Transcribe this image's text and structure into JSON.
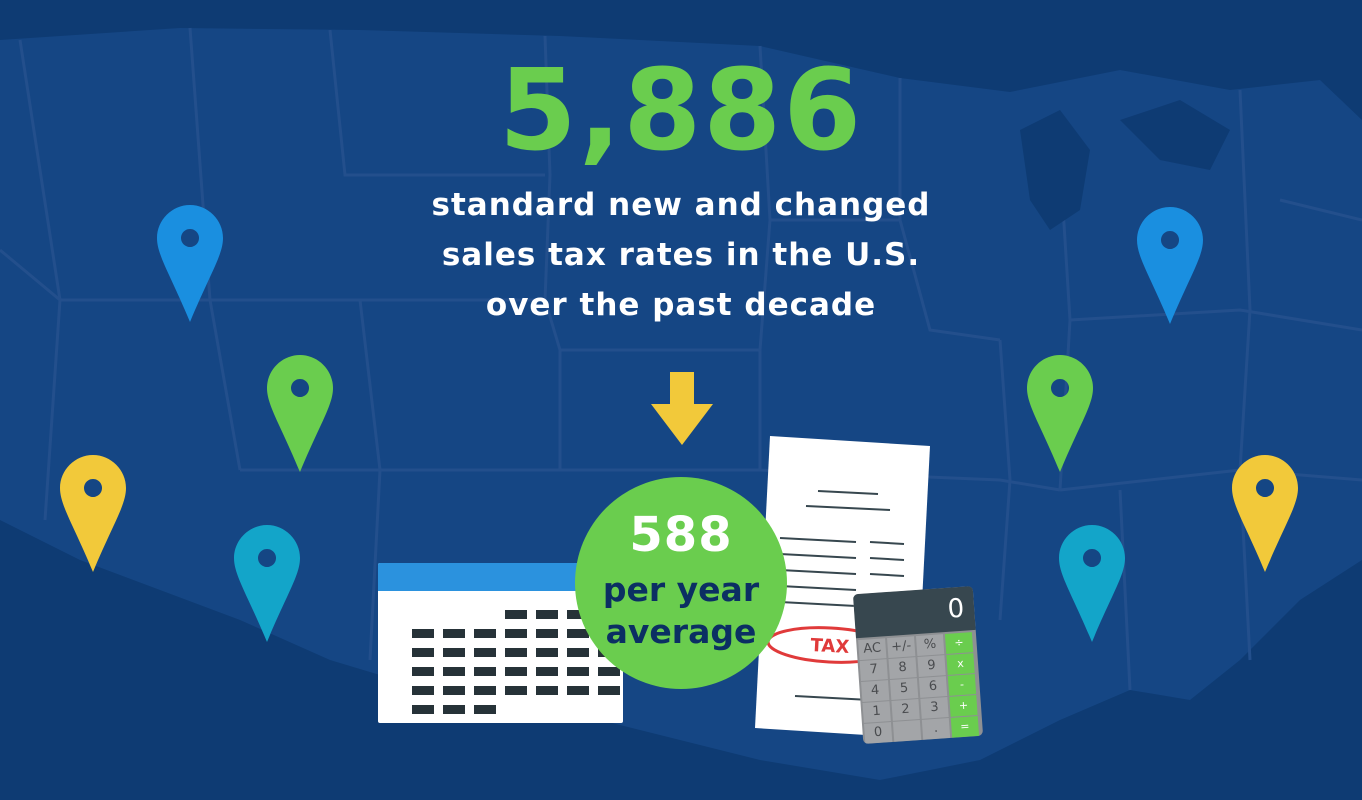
{
  "headline": {
    "number": "5,886",
    "lines": [
      "standard new and changed",
      "sales tax rates in the U.S.",
      "over the past decade"
    ]
  },
  "circle": {
    "number": "588",
    "line1": "per year",
    "line2": "average"
  },
  "receipt": {
    "stamp": "TAX"
  },
  "calculator": {
    "display": "0",
    "keys": [
      [
        "AC",
        "+/-",
        "%",
        "÷"
      ],
      [
        "7",
        "8",
        "9",
        "x"
      ],
      [
        "4",
        "5",
        "6",
        "-"
      ],
      [
        "1",
        "2",
        "3",
        "+"
      ],
      [
        "0",
        "",
        ".",
        "="
      ]
    ]
  },
  "pins": [
    {
      "color": "blue",
      "icon": "location-pin-icon"
    },
    {
      "color": "green",
      "icon": "location-pin-icon"
    },
    {
      "color": "yellow",
      "icon": "location-pin-icon"
    },
    {
      "color": "teal",
      "icon": "location-pin-icon"
    },
    {
      "color": "blue",
      "icon": "location-pin-icon"
    },
    {
      "color": "green",
      "icon": "location-pin-icon"
    },
    {
      "color": "yellow",
      "icon": "location-pin-icon"
    },
    {
      "color": "teal",
      "icon": "location-pin-icon"
    }
  ],
  "colors": {
    "background": "#0e3b73",
    "map_fill": "#154684",
    "map_lines": "#234f8c",
    "accent_green": "#6acd4e",
    "pin_blue": "#1a8fe0",
    "pin_green": "#6acd4e",
    "pin_yellow": "#f2c93a",
    "pin_teal": "#13a5c9",
    "arrow_yellow": "#f2c93a",
    "circle_text_dark": "#0b2f63",
    "calendar_header": "#2b92de",
    "stamp_red": "#e03a3a"
  },
  "icons": {
    "arrow": "arrow-down-icon",
    "calendar": "calendar-icon",
    "receipt": "receipt-icon",
    "calculator": "calculator-icon"
  }
}
